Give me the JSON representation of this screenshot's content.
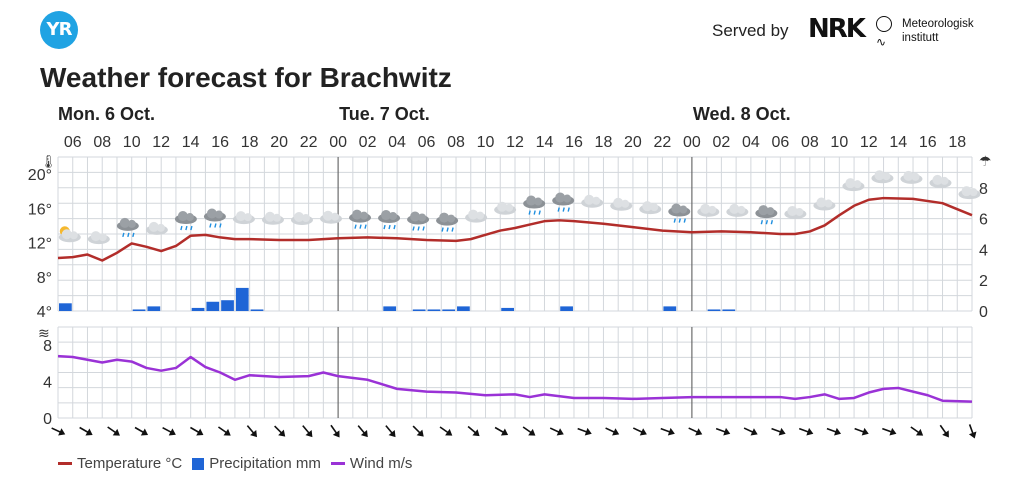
{
  "header": {
    "logo_text": "YR",
    "served_by": "Served by",
    "nrk_logo": "NRK",
    "met_line1": "Meteorologisk",
    "met_line2": "institutt",
    "title": "Weather forecast for Brachwitz"
  },
  "legend": {
    "temperature": "Temperature °C",
    "precipitation": "Precipitation mm",
    "wind": "Wind m/s"
  },
  "colors": {
    "temperature": "#b22d2a",
    "precipitation": "#1f65d6",
    "wind": "#9a32d6",
    "grid": "#d3d7dc",
    "day_line": "#555555"
  },
  "chart_data": {
    "type": "line",
    "day_labels": [
      {
        "label": "Mon. 6 Oct.",
        "hour": 5
      },
      {
        "label": "Tue. 7 Oct.",
        "hour": 24
      },
      {
        "label": "Wed. 8 Oct.",
        "hour": 48
      }
    ],
    "x_ticks": [
      "06",
      "08",
      "10",
      "12",
      "14",
      "16",
      "18",
      "20",
      "22",
      "00",
      "02",
      "04",
      "06",
      "08",
      "10",
      "12",
      "14",
      "16",
      "18",
      "20",
      "22",
      "00",
      "02",
      "04",
      "06",
      "08",
      "10",
      "12",
      "14",
      "16",
      "18"
    ],
    "x_start_hour": 5,
    "x_end_hour": 67,
    "temperature": {
      "name": "Temperature °C",
      "unit": "°C",
      "y_ticks": [
        "4°",
        "8°",
        "12°",
        "16°",
        "20°"
      ],
      "ylim": [
        4,
        22
      ],
      "points": [
        [
          5,
          10.2
        ],
        [
          6,
          10.3
        ],
        [
          7,
          10.6
        ],
        [
          8,
          9.9
        ],
        [
          9,
          10.8
        ],
        [
          10,
          11.9
        ],
        [
          11,
          11.5
        ],
        [
          12,
          11
        ],
        [
          13,
          11.6
        ],
        [
          14,
          12.8
        ],
        [
          15,
          12.9
        ],
        [
          16,
          12.6
        ],
        [
          17,
          12.4
        ],
        [
          18,
          12.4
        ],
        [
          20,
          12.3
        ],
        [
          22,
          12.3
        ],
        [
          24,
          12.5
        ],
        [
          26,
          12.6
        ],
        [
          28,
          12.5
        ],
        [
          30,
          12.3
        ],
        [
          32,
          12.2
        ],
        [
          33,
          12.4
        ],
        [
          34,
          12.9
        ],
        [
          35,
          13.4
        ],
        [
          36,
          13.7
        ],
        [
          37,
          14.1
        ],
        [
          38,
          14.5
        ],
        [
          39,
          14.6
        ],
        [
          40,
          14.5
        ],
        [
          42,
          14.2
        ],
        [
          44,
          13.8
        ],
        [
          46,
          13.4
        ],
        [
          48,
          13.2
        ],
        [
          50,
          13.3
        ],
        [
          52,
          13.2
        ],
        [
          54,
          13
        ],
        [
          55,
          13
        ],
        [
          56,
          13.3
        ],
        [
          57,
          14
        ],
        [
          58,
          15.2
        ],
        [
          59,
          16.3
        ],
        [
          60,
          17
        ],
        [
          61,
          17.2
        ],
        [
          63,
          17.1
        ],
        [
          65,
          16.6
        ],
        [
          66,
          15.9
        ],
        [
          67,
          15.2
        ]
      ]
    },
    "precipitation": {
      "name": "Precipitation mm",
      "unit": "mm",
      "y_ticks": [
        "0",
        "2",
        "4",
        "6",
        "8"
      ],
      "ylim": [
        0,
        10
      ],
      "bars": [
        [
          5,
          0.5
        ],
        [
          10,
          0.1
        ],
        [
          11,
          0.3
        ],
        [
          14,
          0.2
        ],
        [
          15,
          0.6
        ],
        [
          16,
          0.7
        ],
        [
          17,
          1.5
        ],
        [
          18,
          0.1
        ],
        [
          27,
          0.3
        ],
        [
          29,
          0.1
        ],
        [
          30,
          0.1
        ],
        [
          31,
          0.1
        ],
        [
          32,
          0.3
        ],
        [
          35,
          0.2
        ],
        [
          39,
          0.3
        ],
        [
          46,
          0.3
        ],
        [
          49,
          0.1
        ],
        [
          50,
          0.1
        ]
      ]
    },
    "wind": {
      "name": "Wind m/s",
      "unit": "m/s",
      "y_ticks": [
        "0",
        "4",
        "8"
      ],
      "ylim": [
        0,
        10
      ],
      "points": [
        [
          5,
          6.8
        ],
        [
          6,
          6.7
        ],
        [
          7,
          6.4
        ],
        [
          8,
          6.1
        ],
        [
          9,
          6.4
        ],
        [
          10,
          6.2
        ],
        [
          11,
          5.5
        ],
        [
          12,
          5.2
        ],
        [
          13,
          5.5
        ],
        [
          14,
          6.7
        ],
        [
          15,
          5.6
        ],
        [
          16,
          5
        ],
        [
          17,
          4.2
        ],
        [
          18,
          4.7
        ],
        [
          20,
          4.5
        ],
        [
          22,
          4.6
        ],
        [
          23,
          5
        ],
        [
          24,
          4.6
        ],
        [
          26,
          4.2
        ],
        [
          27,
          3.7
        ],
        [
          28,
          3.2
        ],
        [
          30,
          2.9
        ],
        [
          32,
          2.8
        ],
        [
          34,
          2.5
        ],
        [
          36,
          2.6
        ],
        [
          37,
          2.3
        ],
        [
          38,
          2.6
        ],
        [
          40,
          2.2
        ],
        [
          42,
          2.2
        ],
        [
          44,
          2.1
        ],
        [
          46,
          2.2
        ],
        [
          48,
          2.3
        ],
        [
          50,
          2.3
        ],
        [
          52,
          2.3
        ],
        [
          54,
          2.3
        ],
        [
          55,
          2.1
        ],
        [
          56,
          2.3
        ],
        [
          57,
          2.6
        ],
        [
          58,
          2.1
        ],
        [
          59,
          2.2
        ],
        [
          60,
          2.8
        ],
        [
          61,
          3.2
        ],
        [
          62,
          3.3
        ],
        [
          63,
          2.9
        ],
        [
          64,
          2.5
        ],
        [
          65,
          1.9
        ],
        [
          67,
          1.8
        ]
      ]
    },
    "weather_symbols": [
      {
        "hour": 5,
        "icon": "partly-cloudy-sun"
      },
      {
        "hour": 6,
        "icon": "cloudy"
      },
      {
        "hour": 7,
        "icon": "cloudy-rain"
      },
      {
        "hour": 8,
        "icon": "cloudy"
      },
      {
        "hour": 9,
        "icon": "cloudy-rain"
      },
      {
        "hour": 10,
        "icon": "cloudy-rain"
      },
      {
        "hour": 11,
        "icon": "cloudy"
      },
      {
        "hour": 12,
        "icon": "cloudy"
      },
      {
        "hour": 13,
        "icon": "cloudy"
      },
      {
        "hour": 14,
        "icon": "cloudy"
      },
      {
        "hour": 15,
        "icon": "cloudy-rain"
      },
      {
        "hour": 16,
        "icon": "cloudy-rain"
      },
      {
        "hour": 17,
        "icon": "cloudy-rain"
      },
      {
        "hour": 18,
        "icon": "cloudy-rain"
      },
      {
        "hour": 19,
        "icon": "cloudy"
      },
      {
        "hour": 20,
        "icon": "cloudy"
      },
      {
        "hour": 21,
        "icon": "cloudy-rain"
      },
      {
        "hour": 22,
        "icon": "cloudy-rain"
      },
      {
        "hour": 23,
        "icon": "cloudy"
      },
      {
        "hour": 24,
        "icon": "cloudy"
      },
      {
        "hour": 25,
        "icon": "cloudy"
      },
      {
        "hour": 26,
        "icon": "cloudy-rain"
      },
      {
        "hour": 27,
        "icon": "cloudy"
      },
      {
        "hour": 28,
        "icon": "cloudy"
      },
      {
        "hour": 29,
        "icon": "cloudy-rain"
      },
      {
        "hour": 30,
        "icon": "cloudy"
      },
      {
        "hour": 31,
        "icon": "cloudy"
      },
      {
        "hour": 32,
        "icon": "cloudy"
      },
      {
        "hour": 33,
        "icon": "cloudy"
      },
      {
        "hour": 34,
        "icon": "cloudy"
      },
      {
        "hour": 35,
        "icon": "cloudy"
      },
      {
        "hour": 36,
        "icon": "cloudy"
      }
    ],
    "wind_directions_deg": [
      115,
      120,
      125,
      120,
      118,
      120,
      125,
      140,
      135,
      140,
      145,
      140,
      140,
      135,
      125,
      130,
      120,
      125,
      115,
      110,
      115,
      115,
      110,
      115,
      110,
      115,
      110,
      110,
      110,
      110,
      110,
      125,
      145,
      160
    ]
  }
}
